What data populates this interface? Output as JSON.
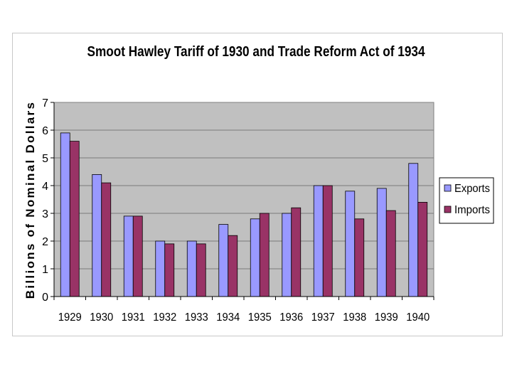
{
  "chart_data": {
    "type": "bar",
    "title": "Smoot Hawley Tariff of 1930 and Trade Reform Act of 1934",
    "ylabel": "Billions of Nominal Dollars",
    "xlabel": "",
    "categories": [
      "1929",
      "1930",
      "1931",
      "1932",
      "1933",
      "1934",
      "1935",
      "1936",
      "1937",
      "1938",
      "1939",
      "1940"
    ],
    "series": [
      {
        "name": "Exports",
        "color": "#9999ff",
        "values": [
          5.9,
          4.4,
          2.9,
          2.0,
          2.0,
          2.6,
          2.8,
          3.0,
          4.0,
          3.8,
          3.9,
          4.8
        ]
      },
      {
        "name": "Imports",
        "color": "#993366",
        "values": [
          5.6,
          4.1,
          2.9,
          1.9,
          1.9,
          2.2,
          3.0,
          3.2,
          4.0,
          2.8,
          3.1,
          3.4
        ]
      }
    ],
    "ylim": [
      0,
      7
    ],
    "yticks": [
      "0",
      "1",
      "2",
      "3",
      "4",
      "5",
      "6",
      "7"
    ],
    "grid": true,
    "plot_background": "#c0c0c0",
    "legend_position": "right"
  }
}
